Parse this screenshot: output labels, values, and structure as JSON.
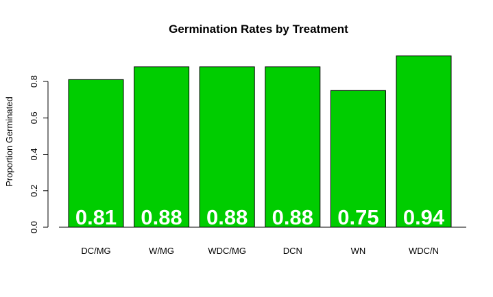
{
  "chart_data": {
    "type": "bar",
    "title": "Germination Rates by Treatment",
    "xlabel": "",
    "ylabel": "Proportion Germinated",
    "categories": [
      "DC/MG",
      "W/MG",
      "WDC/MG",
      "DCN",
      "WN",
      "WDC/N"
    ],
    "values": [
      0.81,
      0.88,
      0.88,
      0.88,
      0.75,
      0.94
    ],
    "data_labels": [
      "0.81",
      "0.88",
      "0.88",
      "0.88",
      "0.75",
      "0.94"
    ],
    "ylim": [
      0,
      0.94
    ],
    "yticks": [
      0.0,
      0.2,
      0.4,
      0.6,
      0.8
    ],
    "ytick_labels": [
      "0.0",
      "0.2",
      "0.4",
      "0.6",
      "0.8"
    ],
    "bar_color": "#00CD00",
    "bar_border_color": "#000000",
    "data_label_color": "#FFFFFF",
    "grid": false,
    "legend": "none"
  }
}
